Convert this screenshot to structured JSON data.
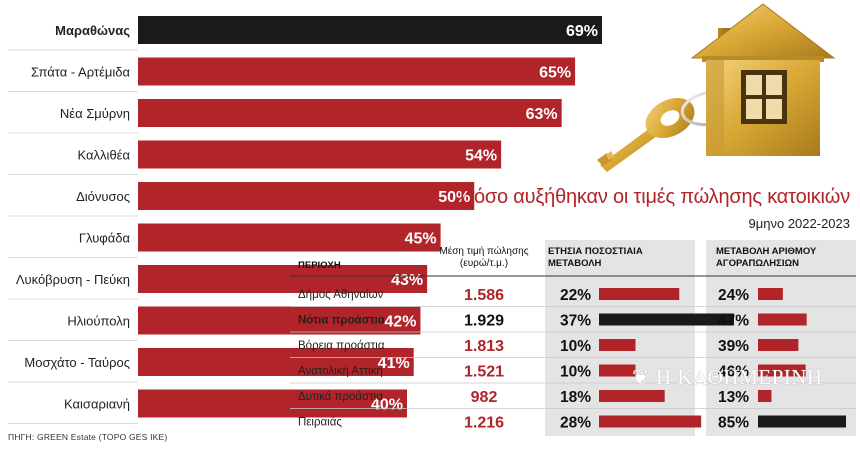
{
  "title": "Πόσο αυξήθηκαν οι τιμές πώλησης κατοικιών",
  "subtitle": "9μηνο 2022-2023",
  "source": "ΠΗΓΗ: GREEN Estate (TOPO GES IKE)",
  "watermark": "Η ΚΑΘΗΜΕΡΙΝΗ",
  "colors": {
    "accent": "#b0242a",
    "highlight": "#1a1a1a",
    "panel": "#e4e4e4"
  },
  "chart_data": [
    {
      "type": "bar",
      "orientation": "horizontal",
      "categories": [
        "Μαραθώνας",
        "Σπάτα - Αρτέμιδα",
        "Νέα Σμύρνη",
        "Καλλιθέα",
        "Διόνυσος",
        "Γλυφάδα",
        "Λυκόβρυση - Πεύκη",
        "Ηλιούπολη",
        "Μοσχάτο - Ταύρος",
        "Καισαριανή"
      ],
      "values": [
        69,
        65,
        63,
        54,
        50,
        45,
        43,
        42,
        41,
        40
      ],
      "value_labels": [
        "69%",
        "65%",
        "63%",
        "54%",
        "50%",
        "45%",
        "43%",
        "42%",
        "41%",
        "40%"
      ],
      "highlight_index": 0,
      "xlim": [
        0,
        69
      ]
    },
    {
      "type": "table",
      "columns": [
        "ΠΕΡΙΟΧΗ",
        "Μέση τιμή πώλησης (ευρώ/τ.μ.)",
        "ΕΤΗΣΙΑ ΠΟΣΟΣΤΙΑΙΑ ΜΕΤΑΒΟΛΗ",
        "ΜΕΤΑΒΟΛΗ ΑΡΙΘΜΟΥ ΑΓΟΡΑΠΩΛΗΣΙΩΝ"
      ],
      "column_lines": [
        [
          "ΠΕΡΙΟΧΗ"
        ],
        [
          "Μέση τιμή πώλησης",
          "(ευρώ/τ.μ.)"
        ],
        [
          "ΕΤΗΣΙΑ ΠΟΣΟΣΤΙΑΙΑ",
          "ΜΕΤΑΒΟΛΗ"
        ],
        [
          "ΜΕΤΑΒΟΛΗ ΑΡΙΘΜΟΥ",
          "ΑΓΟΡΑΠΩΛΗΣΙΩΝ"
        ]
      ],
      "rows": [
        {
          "region": "Δήμος Αθηναίων",
          "price": "1.586",
          "annual_change": 22,
          "annual_label": "22%",
          "transactions_change": 24,
          "transactions_label": "24%",
          "highlight": false
        },
        {
          "region": "Νότια προάστια",
          "price": "1.929",
          "annual_change": 37,
          "annual_label": "37%",
          "transactions_change": 47,
          "transactions_label": "47%",
          "highlight": true
        },
        {
          "region": "Βόρεια προάστια",
          "price": "1.813",
          "annual_change": 10,
          "annual_label": "10%",
          "transactions_change": 39,
          "transactions_label": "39%",
          "highlight": false
        },
        {
          "region": "Ανατολική Αττική",
          "price": "1.521",
          "annual_change": 10,
          "annual_label": "10%",
          "transactions_change": 46,
          "transactions_label": "46%",
          "highlight": false
        },
        {
          "region": "Δυτικά προάστια",
          "price": "982",
          "annual_change": 18,
          "annual_label": "18%",
          "transactions_change": 13,
          "transactions_label": "13%",
          "highlight": false
        },
        {
          "region": "Πειραιάς",
          "price": "1.216",
          "annual_change": 28,
          "annual_label": "28%",
          "transactions_change": 85,
          "transactions_label": "85%",
          "highlight": false
        }
      ],
      "annual_bar_max": 37,
      "transactions_bar_max": 85
    }
  ]
}
